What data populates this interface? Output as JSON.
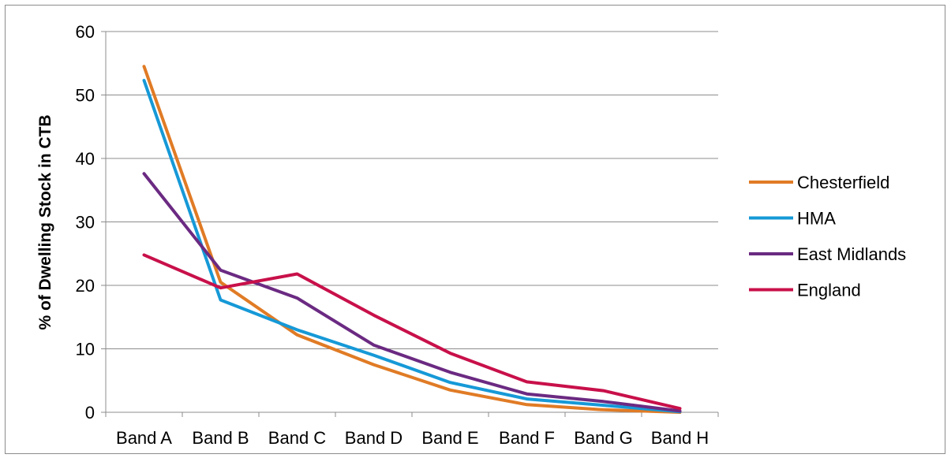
{
  "chart_data": {
    "type": "line",
    "title": "",
    "xlabel": "",
    "ylabel": "% of Dwelling Stock in CTB",
    "categories": [
      "Band A",
      "Band B",
      "Band C",
      "Band D",
      "Band E",
      "Band F",
      "Band G",
      "Band H"
    ],
    "ylim": [
      0,
      60
    ],
    "yticks": [
      0,
      10,
      20,
      30,
      40,
      50,
      60
    ],
    "grid": "horizontal",
    "legend_position": "right",
    "series": [
      {
        "name": "Chesterfield",
        "color": "#E07B25",
        "values": [
          54.5,
          20.5,
          12.2,
          7.5,
          3.5,
          1.2,
          0.4,
          0.0
        ]
      },
      {
        "name": "HMA",
        "color": "#1699D7",
        "values": [
          52.3,
          17.7,
          13.0,
          9.0,
          4.7,
          2.1,
          1.1,
          0.1
        ]
      },
      {
        "name": "East Midlands",
        "color": "#6B2A82",
        "values": [
          37.6,
          22.4,
          18.0,
          10.6,
          6.3,
          2.9,
          1.7,
          0.2
        ]
      },
      {
        "name": "England",
        "color": "#C8104A",
        "values": [
          24.8,
          19.6,
          21.8,
          15.3,
          9.3,
          4.8,
          3.4,
          0.6
        ]
      }
    ]
  }
}
